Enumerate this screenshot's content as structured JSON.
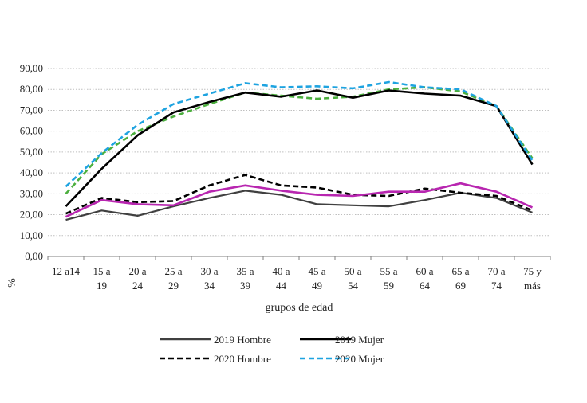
{
  "chart_data": {
    "type": "line",
    "title": "",
    "xlabel": "grupos de edad",
    "ylabel": "%",
    "ylim": [
      0,
      90
    ],
    "yticks": [
      "0,00",
      "10,00",
      "20,00",
      "30,00",
      "40,00",
      "50,00",
      "60,00",
      "70,00",
      "80,00",
      "90,00"
    ],
    "grid": "horizontal-dotted",
    "legend_position": "bottom",
    "categories": [
      [
        "12 a14"
      ],
      [
        "15 a",
        "19"
      ],
      [
        "20 a",
        "24"
      ],
      [
        "25 a",
        "29"
      ],
      [
        "30 a",
        "34"
      ],
      [
        "35 a",
        "39"
      ],
      [
        "40 a",
        "44"
      ],
      [
        "45 a",
        "49"
      ],
      [
        "50 a",
        "54"
      ],
      [
        "55 a",
        "59"
      ],
      [
        "60 a",
        "64"
      ],
      [
        "65 a",
        "69"
      ],
      [
        "70 a",
        "74"
      ],
      [
        "75 y",
        "más"
      ]
    ],
    "series": [
      {
        "name": "2019 Hombre",
        "color": "#404040",
        "dash": "solid",
        "width": 2.2,
        "legend": true,
        "values": [
          17.5,
          22,
          19.5,
          24,
          28,
          31.5,
          29.5,
          25,
          24.5,
          24,
          27,
          30.5,
          28,
          21
        ]
      },
      {
        "name": "2019 Mujer",
        "color": "#000000",
        "dash": "solid",
        "width": 2.6,
        "legend": true,
        "values": [
          24,
          42,
          58,
          69,
          74,
          78.5,
          76.5,
          79.5,
          76,
          79.5,
          78,
          77,
          72,
          44
        ]
      },
      {
        "name": "2020 Hombre",
        "color": "#000000",
        "dash": "dashed",
        "width": 2.6,
        "legend": true,
        "values": [
          20.5,
          28,
          26,
          26.5,
          34,
          39,
          34,
          33,
          29.5,
          29,
          32.5,
          30.5,
          29,
          22
        ]
      },
      {
        "name": "2020 Mujer",
        "color": "#1ea3e0",
        "dash": "dashed",
        "width": 2.6,
        "legend": true,
        "values": [
          33.5,
          49.5,
          63,
          73,
          78,
          83,
          81,
          81.5,
          80.5,
          83.5,
          81,
          80,
          72,
          46
        ]
      },
      {
        "name": "",
        "color": "#b826b0",
        "dash": "solid",
        "width": 2.6,
        "legend": false,
        "values": [
          19,
          27,
          25,
          24.5,
          31,
          34,
          31.5,
          29.5,
          29,
          31,
          31,
          35,
          31,
          23.5
        ]
      },
      {
        "name": "",
        "color": "#4caf3e",
        "dash": "dashed",
        "width": 2.6,
        "legend": false,
        "values": [
          30,
          49,
          60,
          67,
          73,
          78.5,
          77,
          75.5,
          76.5,
          80,
          81,
          79,
          72,
          47
        ]
      }
    ]
  }
}
